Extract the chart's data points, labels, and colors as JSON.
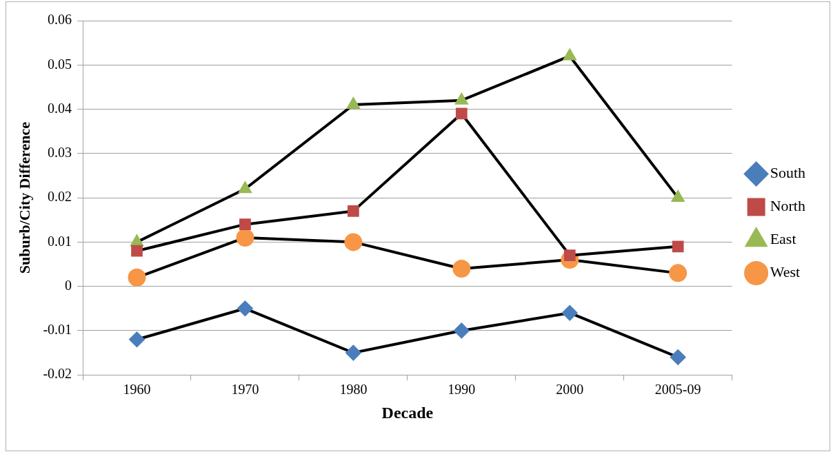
{
  "chart_data": {
    "type": "line",
    "xlabel": "Decade",
    "ylabel": "Suburb/City Difference",
    "categories": [
      "1960",
      "1970",
      "1980",
      "1990",
      "2000",
      "2005-09"
    ],
    "series": [
      {
        "name": "South",
        "color": "#4a7ebb",
        "marker": "diamond",
        "values": [
          -0.012,
          -0.005,
          -0.015,
          -0.01,
          -0.006,
          -0.016
        ]
      },
      {
        "name": "North",
        "color": "#be4b48",
        "marker": "square",
        "values": [
          0.008,
          0.014,
          0.017,
          0.039,
          0.007,
          0.009
        ]
      },
      {
        "name": "East",
        "color": "#98b954",
        "marker": "triangle",
        "values": [
          0.01,
          0.022,
          0.041,
          0.042,
          0.052,
          0.02
        ]
      },
      {
        "name": "West",
        "color": "#f79646",
        "marker": "circle",
        "values": [
          0.002,
          0.011,
          0.01,
          0.004,
          0.006,
          0.003
        ]
      }
    ],
    "ylim": [
      -0.02,
      0.06
    ],
    "yticks": [
      -0.02,
      -0.01,
      0,
      0.01,
      0.02,
      0.03,
      0.04,
      0.05,
      0.06
    ],
    "grid": "y",
    "legend": "right",
    "line_style": "solid"
  }
}
